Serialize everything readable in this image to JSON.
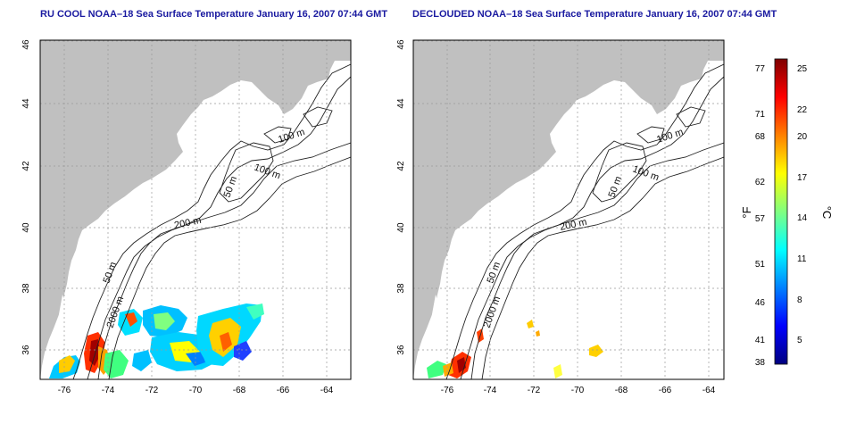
{
  "maps": [
    {
      "title": "RU COOL NOAA–18 Sea Surface Temperature January 16, 2007 07:44 GMT",
      "x_ticks": [
        "-76",
        "-74",
        "-72",
        "-70",
        "-68",
        "-66",
        "-64"
      ],
      "y_ticks": [
        "36",
        "38",
        "40",
        "42",
        "44",
        "46"
      ],
      "contour_labels": [
        "100 m",
        "100 m",
        "50 m",
        "200 m",
        "50 m",
        "2000 m"
      ]
    },
    {
      "title": "DECLOUDED NOAA–18 Sea Surface Temperature January 16, 2007 07:44 GMT",
      "x_ticks": [
        "-76",
        "-74",
        "-72",
        "-70",
        "-68",
        "-66",
        "-64"
      ],
      "y_ticks": [
        "36",
        "38",
        "40",
        "42",
        "44",
        "46"
      ],
      "contour_labels": [
        "100 m",
        "100 m",
        "50 m",
        "200 m",
        "50 m",
        "2000 m"
      ]
    }
  ],
  "colorbar": {
    "fahrenheit_ticks": [
      "77",
      "71",
      "68",
      "62",
      "57",
      "51",
      "46",
      "41",
      "38"
    ],
    "celsius_ticks": [
      "25",
      "22",
      "20",
      "17",
      "14",
      "11",
      "8",
      "5"
    ],
    "f_unit": "°F",
    "c_unit": "°C",
    "colors": [
      "#00007f",
      "#0000ff",
      "#0080ff",
      "#00ffff",
      "#80ff80",
      "#ffff00",
      "#ff8000",
      "#ff0000",
      "#7f0000"
    ]
  },
  "colors": {
    "land": "#c0c0c0",
    "ocean": "#ffffff",
    "contour": "#222222",
    "grid": "#999999",
    "title": "#1a1aa0"
  }
}
